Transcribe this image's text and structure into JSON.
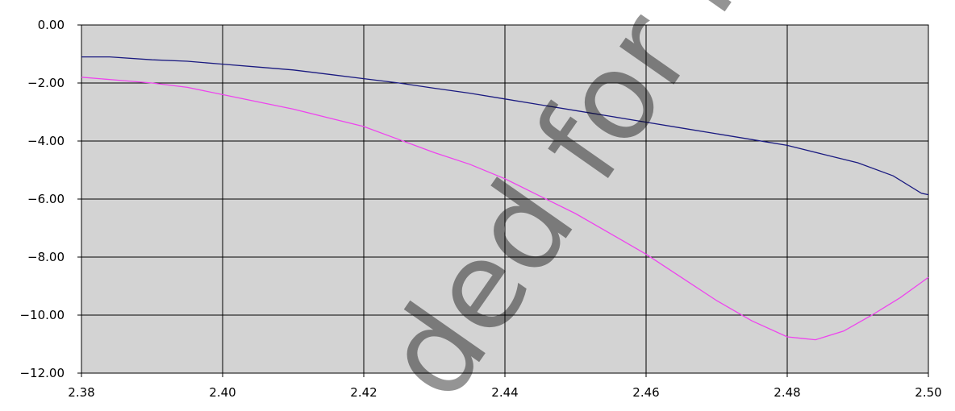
{
  "chart_data": {
    "type": "line",
    "title": "",
    "xlabel": "",
    "ylabel": "",
    "xlim": [
      2.38,
      2.5
    ],
    "ylim": [
      -12,
      0
    ],
    "grid": true,
    "plot_background": "#d3d3d3",
    "x_ticks": [
      "2.38",
      "2.40",
      "2.42",
      "2.44",
      "2.46",
      "2.48",
      "2.50"
    ],
    "y_ticks": [
      "0.00",
      "−2.00",
      "−4.00",
      "−6.00",
      "−8.00",
      "−10.00",
      "−12.00"
    ],
    "series": [
      {
        "color": "#1a1a80",
        "x": [
          2.38,
          2.384,
          2.39,
          2.395,
          2.4,
          2.405,
          2.41,
          2.415,
          2.42,
          2.425,
          2.43,
          2.435,
          2.44,
          2.445,
          2.45,
          2.455,
          2.46,
          2.465,
          2.47,
          2.475,
          2.48,
          2.485,
          2.49,
          2.495,
          2.499,
          2.5
        ],
        "y": [
          -1.1,
          -1.1,
          -1.2,
          -1.25,
          -1.35,
          -1.45,
          -1.55,
          -1.7,
          -1.85,
          -2.0,
          -2.18,
          -2.35,
          -2.55,
          -2.75,
          -2.95,
          -3.15,
          -3.35,
          -3.55,
          -3.75,
          -3.95,
          -4.15,
          -4.45,
          -4.75,
          -5.2,
          -5.8,
          -5.85
        ]
      },
      {
        "color": "#ee44ee",
        "x": [
          2.38,
          2.385,
          2.39,
          2.395,
          2.4,
          2.405,
          2.41,
          2.415,
          2.42,
          2.425,
          2.43,
          2.435,
          2.44,
          2.445,
          2.45,
          2.455,
          2.46,
          2.465,
          2.47,
          2.475,
          2.48,
          2.482,
          2.484,
          2.488,
          2.492,
          2.496,
          2.5
        ],
        "y": [
          -1.8,
          -1.9,
          -2.0,
          -2.15,
          -2.4,
          -2.65,
          -2.9,
          -3.2,
          -3.5,
          -3.95,
          -4.4,
          -4.8,
          -5.3,
          -5.9,
          -6.5,
          -7.2,
          -7.9,
          -8.7,
          -9.5,
          -10.2,
          -10.75,
          -10.8,
          -10.85,
          -10.55,
          -10.0,
          -9.4,
          -8.7
        ]
      }
    ]
  },
  "watermark": "ded for New E"
}
